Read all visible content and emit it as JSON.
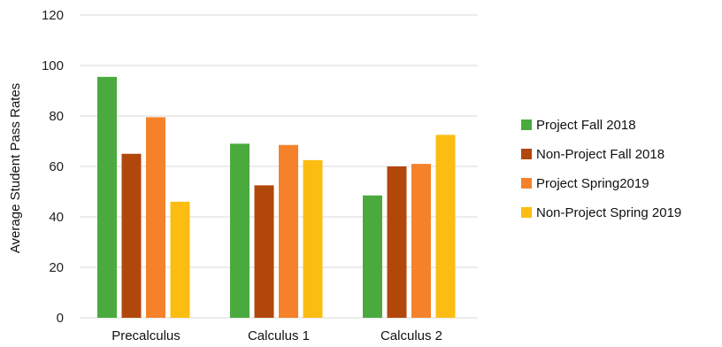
{
  "chart_data": {
    "type": "bar",
    "title": "",
    "xlabel": "",
    "ylabel": "Average Student Pass Rates",
    "ylim": [
      0,
      120
    ],
    "yticks": [
      0,
      20,
      40,
      60,
      80,
      100,
      120
    ],
    "grid": true,
    "legend_position": "right",
    "categories": [
      "Precalculus",
      "Calculus 1",
      "Calculus 2"
    ],
    "series": [
      {
        "name": "Project Fall 2018",
        "color": "#4aaa3e",
        "values": [
          95.5,
          69,
          48.5
        ]
      },
      {
        "name": "Non-Project Fall 2018",
        "color": "#b2470b",
        "values": [
          65,
          52.5,
          60
        ]
      },
      {
        "name": "Project Spring2019",
        "color": "#f5822a",
        "values": [
          79.5,
          68.5,
          61
        ]
      },
      {
        "name": "Non-Project Spring 2019",
        "color": "#fcbd12",
        "values": [
          46,
          62.5,
          72.5
        ]
      }
    ]
  }
}
